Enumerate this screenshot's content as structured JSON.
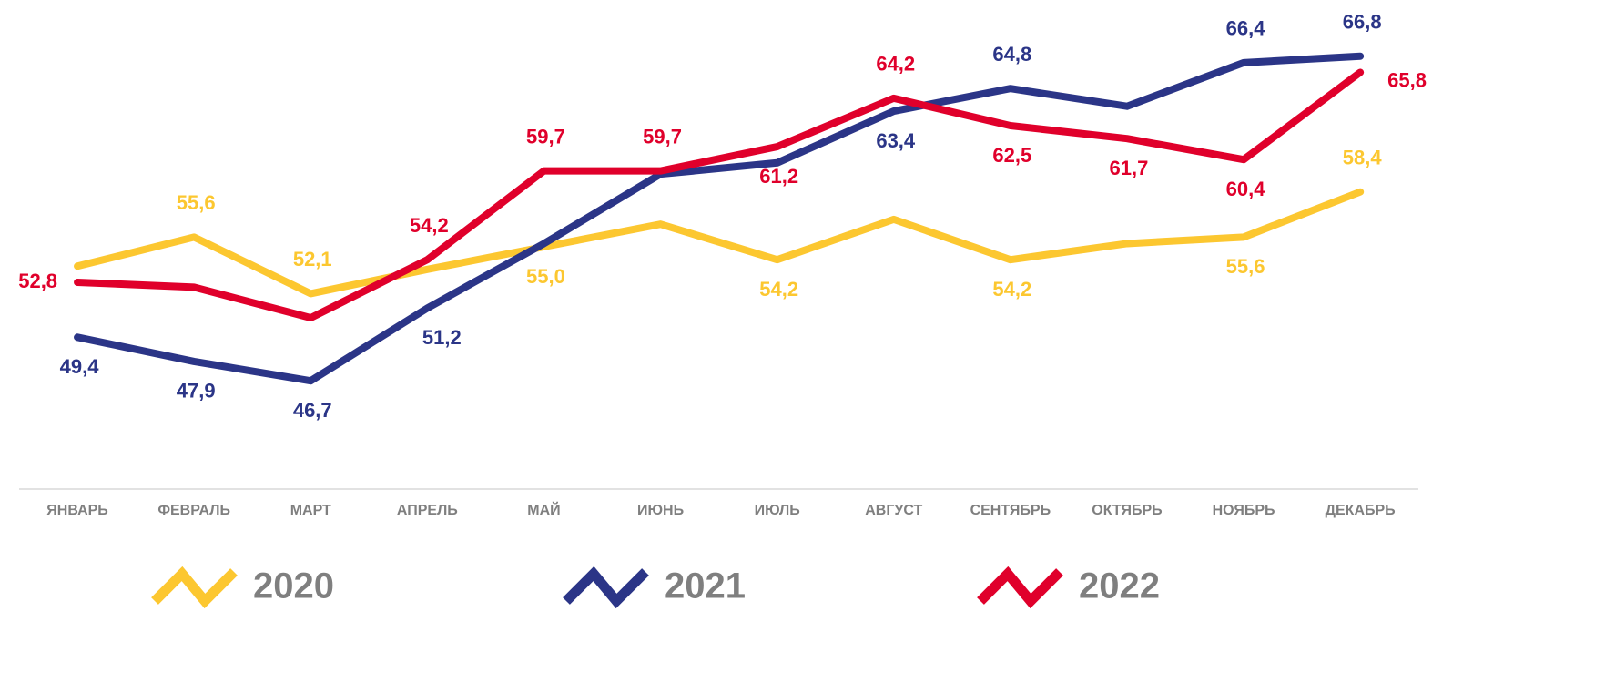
{
  "chart_data": {
    "type": "line",
    "categories": [
      "ЯНВАРЬ",
      "ФЕВРАЛЬ",
      "МАРТ",
      "АПРЕЛЬ",
      "МАЙ",
      "ИЮНЬ",
      "ИЮЛЬ",
      "АВГУСТ",
      "СЕНТЯБРЬ",
      "ОКТЯБРЬ",
      "НОЯБРЬ",
      "ДЕКАБРЬ"
    ],
    "series": [
      {
        "name": "2020",
        "color": "#fcc730",
        "values": [
          53.8,
          55.6,
          52.1,
          53.6,
          55.0,
          56.4,
          54.2,
          56.7,
          54.2,
          55.2,
          55.6,
          58.4
        ],
        "value_labels": [
          null,
          "55,6",
          "52,1",
          null,
          "55,0",
          null,
          "54,2",
          null,
          "54,2",
          null,
          "55,6",
          "58,4"
        ]
      },
      {
        "name": "2021",
        "color": "#2b3587",
        "values": [
          49.4,
          47.9,
          46.7,
          51.2,
          55.2,
          59.5,
          60.2,
          63.4,
          64.8,
          63.7,
          66.4,
          66.8
        ],
        "value_labels": [
          "49,4",
          "47,9",
          "46,7",
          "51,2",
          null,
          null,
          null,
          "63,4",
          "64,8",
          null,
          "66,4",
          "66,8"
        ]
      },
      {
        "name": "2022",
        "color": "#e0002b",
        "values": [
          52.8,
          52.5,
          50.6,
          54.2,
          59.7,
          59.7,
          61.2,
          64.2,
          62.5,
          61.7,
          60.4,
          65.8
        ],
        "value_labels": [
          "52,8",
          null,
          null,
          "54,2",
          "59,7",
          "59,7",
          "61,2",
          "64,2",
          "62,5",
          "61,7",
          "60,4",
          "65,8"
        ]
      }
    ],
    "ylim": [
      40,
      70
    ],
    "grid": false,
    "legend": "bottom"
  }
}
